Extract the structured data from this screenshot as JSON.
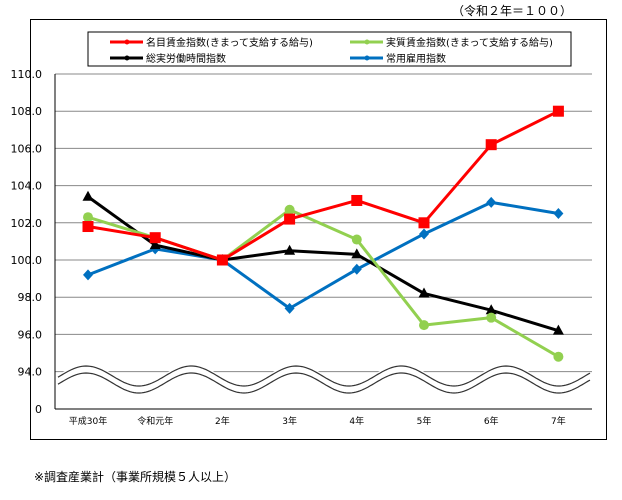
{
  "note": "（令和２年＝１００）",
  "footnote": "※調査産業計（事業所規模５人以上）",
  "chart_data": {
    "type": "line",
    "title": "",
    "xlabel": "",
    "ylabel": "",
    "categories": [
      "平成30年",
      "令和元年",
      "2年",
      "3年",
      "4年",
      "5年",
      "6年",
      "7年"
    ],
    "y_ticks": [
      "110.0",
      "108.0",
      "106.0",
      "104.0",
      "102.0",
      "100.0",
      "98.0",
      "96.0",
      "94.0",
      "0"
    ],
    "ylim": [
      94,
      110
    ],
    "axis_break": "wavy break between 0 and 94.0",
    "grid": true,
    "legend_placement": "top",
    "series": [
      {
        "name": "名目賃金指数(きまって支給する給与)",
        "color": "#ff0000",
        "marker": "square",
        "values": [
          101.8,
          101.2,
          100.0,
          102.2,
          103.2,
          102.0,
          106.2,
          108.0
        ]
      },
      {
        "name": "実質賃金指数(きまって支給する給与)",
        "color": "#92d050",
        "marker": "circle",
        "values": [
          102.3,
          101.2,
          100.0,
          102.7,
          101.1,
          96.5,
          96.9,
          94.8
        ]
      },
      {
        "name": "総実労働時間指数",
        "color": "#000000",
        "marker": "triangle",
        "values": [
          103.4,
          100.8,
          100.0,
          100.5,
          100.3,
          98.2,
          97.3,
          96.2
        ]
      },
      {
        "name": "常用雇用指数",
        "color": "#0070c0",
        "marker": "diamond",
        "values": [
          99.2,
          100.6,
          100.0,
          97.4,
          99.5,
          101.4,
          103.1,
          102.5
        ]
      }
    ]
  }
}
